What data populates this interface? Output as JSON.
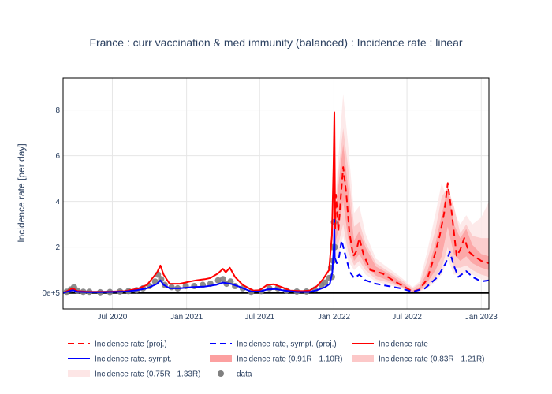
{
  "chart_data": {
    "type": "line",
    "title": "France : curr vaccination & med immunity (balanced) : Incidence rate : linear",
    "xlabel": "",
    "ylabel": "Incidence rate [per day]",
    "x_range": [
      "2020-03-01",
      "2023-01-20"
    ],
    "ylim": [
      -0.7,
      9.4
    ],
    "x_ticks": [
      {
        "date": "2020-07-01",
        "label": "Jul 2020"
      },
      {
        "date": "2021-01-01",
        "label": "Jan 2021"
      },
      {
        "date": "2021-07-01",
        "label": "Jul 2021"
      },
      {
        "date": "2022-01-01",
        "label": "Jan 2022"
      },
      {
        "date": "2022-07-01",
        "label": "Jul 2022"
      },
      {
        "date": "2023-01-01",
        "label": "Jan 2023"
      }
    ],
    "y_ticks": [
      {
        "value": 0,
        "label": "0e+5"
      },
      {
        "value": 2,
        "label": "2"
      },
      {
        "value": 4,
        "label": "4"
      },
      {
        "value": 6,
        "label": "6"
      },
      {
        "value": 8,
        "label": "8"
      }
    ],
    "grid": true,
    "legend_position": "bottom",
    "colors": {
      "red": "#ff0000",
      "blue": "#0000ff",
      "band_inner": "#fca0a0",
      "band_mid": "#fcc8c8",
      "band_outer": "#fde6e6",
      "data_points": "#808080",
      "zero_line": "#000000"
    },
    "series": [
      {
        "name": "Incidence rate",
        "style": "solid",
        "color": "#ff0000",
        "points": [
          [
            "2020-03-01",
            0.0
          ],
          [
            "2020-03-25",
            0.2
          ],
          [
            "2020-04-05",
            0.08
          ],
          [
            "2020-05-01",
            0.05
          ],
          [
            "2020-06-01",
            0.05
          ],
          [
            "2020-07-01",
            0.06
          ],
          [
            "2020-08-01",
            0.08
          ],
          [
            "2020-09-01",
            0.18
          ],
          [
            "2020-09-25",
            0.35
          ],
          [
            "2020-10-20",
            0.9
          ],
          [
            "2020-10-28",
            1.2
          ],
          [
            "2020-11-05",
            0.8
          ],
          [
            "2020-11-20",
            0.4
          ],
          [
            "2020-12-15",
            0.4
          ],
          [
            "2021-01-10",
            0.5
          ],
          [
            "2021-01-25",
            0.55
          ],
          [
            "2021-02-15",
            0.6
          ],
          [
            "2021-03-01",
            0.65
          ],
          [
            "2021-03-20",
            0.85
          ],
          [
            "2021-04-01",
            1.05
          ],
          [
            "2021-04-08",
            0.9
          ],
          [
            "2021-04-18",
            1.1
          ],
          [
            "2021-05-01",
            0.7
          ],
          [
            "2021-05-20",
            0.35
          ],
          [
            "2021-06-15",
            0.1
          ],
          [
            "2021-07-01",
            0.12
          ],
          [
            "2021-07-20",
            0.35
          ],
          [
            "2021-08-05",
            0.38
          ],
          [
            "2021-08-25",
            0.25
          ],
          [
            "2021-09-15",
            0.1
          ],
          [
            "2021-10-15",
            0.08
          ],
          [
            "2021-11-01",
            0.1
          ],
          [
            "2021-11-20",
            0.3
          ],
          [
            "2021-12-05",
            0.6
          ],
          [
            "2021-12-20",
            1.0
          ],
          [
            "2021-12-27",
            2.5
          ],
          [
            "2021-12-31",
            5.5
          ],
          [
            "2022-01-02",
            7.9
          ],
          [
            "2022-01-04",
            2.8
          ]
        ]
      },
      {
        "name": "Incidence rate, sympt.",
        "style": "solid",
        "color": "#0000ff",
        "points": [
          [
            "2020-03-01",
            0.0
          ],
          [
            "2020-03-25",
            0.12
          ],
          [
            "2020-04-05",
            0.05
          ],
          [
            "2020-05-01",
            0.03
          ],
          [
            "2020-06-01",
            0.03
          ],
          [
            "2020-07-01",
            0.04
          ],
          [
            "2020-08-01",
            0.06
          ],
          [
            "2020-09-01",
            0.12
          ],
          [
            "2020-09-25",
            0.2
          ],
          [
            "2020-10-20",
            0.4
          ],
          [
            "2020-10-28",
            0.55
          ],
          [
            "2020-11-05",
            0.35
          ],
          [
            "2020-11-20",
            0.2
          ],
          [
            "2020-12-15",
            0.2
          ],
          [
            "2021-01-15",
            0.25
          ],
          [
            "2021-02-15",
            0.28
          ],
          [
            "2021-03-15",
            0.35
          ],
          [
            "2021-04-01",
            0.45
          ],
          [
            "2021-04-20",
            0.4
          ],
          [
            "2021-05-10",
            0.28
          ],
          [
            "2021-06-10",
            0.06
          ],
          [
            "2021-07-01",
            0.06
          ],
          [
            "2021-07-20",
            0.15
          ],
          [
            "2021-08-10",
            0.17
          ],
          [
            "2021-09-01",
            0.1
          ],
          [
            "2021-10-01",
            0.04
          ],
          [
            "2021-11-01",
            0.04
          ],
          [
            "2021-11-20",
            0.12
          ],
          [
            "2021-12-10",
            0.25
          ],
          [
            "2021-12-22",
            0.4
          ],
          [
            "2021-12-28",
            0.9
          ],
          [
            "2022-01-01",
            2.2
          ],
          [
            "2022-01-02",
            3.2
          ],
          [
            "2022-01-03",
            1.5
          ]
        ]
      },
      {
        "name": "Incidence rate (proj.)",
        "style": "dash",
        "color": "#ff0000",
        "points": [
          [
            "2022-01-04",
            2.8
          ],
          [
            "2022-01-06",
            4.3
          ],
          [
            "2022-01-09",
            3.6
          ],
          [
            "2022-01-12",
            2.7
          ],
          [
            "2022-01-18",
            4.2
          ],
          [
            "2022-01-24",
            5.5
          ],
          [
            "2022-02-01",
            4.3
          ],
          [
            "2022-02-08",
            2.7
          ],
          [
            "2022-02-18",
            1.6
          ],
          [
            "2022-02-25",
            1.8
          ],
          [
            "2022-03-05",
            2.4
          ],
          [
            "2022-03-15",
            1.7
          ],
          [
            "2022-04-01",
            1.0
          ],
          [
            "2022-05-01",
            0.85
          ],
          [
            "2022-06-01",
            0.5
          ],
          [
            "2022-07-01",
            0.2
          ],
          [
            "2022-07-15",
            0.05
          ],
          [
            "2022-08-01",
            0.15
          ],
          [
            "2022-08-20",
            0.6
          ],
          [
            "2022-09-05",
            1.5
          ],
          [
            "2022-09-20",
            2.5
          ],
          [
            "2022-10-01",
            3.5
          ],
          [
            "2022-10-10",
            4.8
          ],
          [
            "2022-10-20",
            3.5
          ],
          [
            "2022-11-01",
            1.6
          ],
          [
            "2022-11-10",
            1.9
          ],
          [
            "2022-11-20",
            2.4
          ],
          [
            "2022-12-01",
            1.8
          ],
          [
            "2022-12-15",
            1.6
          ],
          [
            "2023-01-01",
            1.4
          ],
          [
            "2023-01-20",
            1.3
          ]
        ]
      },
      {
        "name": "Incidence rate, sympt. (proj.)",
        "style": "dash",
        "color": "#0000ff",
        "points": [
          [
            "2022-01-04",
            1.5
          ],
          [
            "2022-01-08",
            1.3
          ],
          [
            "2022-01-14",
            1.6
          ],
          [
            "2022-01-20",
            2.3
          ],
          [
            "2022-01-30",
            1.6
          ],
          [
            "2022-02-10",
            0.9
          ],
          [
            "2022-02-20",
            0.65
          ],
          [
            "2022-03-05",
            0.8
          ],
          [
            "2022-03-20",
            0.55
          ],
          [
            "2022-04-15",
            0.4
          ],
          [
            "2022-05-15",
            0.3
          ],
          [
            "2022-06-15",
            0.2
          ],
          [
            "2022-07-15",
            0.05
          ],
          [
            "2022-08-15",
            0.2
          ],
          [
            "2022-09-15",
            0.7
          ],
          [
            "2022-10-05",
            1.3
          ],
          [
            "2022-10-15",
            1.8
          ],
          [
            "2022-10-25",
            1.2
          ],
          [
            "2022-11-05",
            0.7
          ],
          [
            "2022-11-25",
            0.95
          ],
          [
            "2022-12-10",
            0.7
          ],
          [
            "2023-01-01",
            0.5
          ],
          [
            "2023-01-20",
            0.55
          ]
        ]
      }
    ],
    "bands": [
      {
        "name": "Incidence rate (0.75R - 1.33R)",
        "color": "#fde6e6",
        "points": [
          [
            "2022-01-04",
            1.5,
            4.0
          ],
          [
            "2022-01-10",
            1.5,
            5.5
          ],
          [
            "2022-01-24",
            2.5,
            8.7
          ],
          [
            "2022-02-05",
            1.4,
            6.5
          ],
          [
            "2022-02-20",
            1.0,
            3.5
          ],
          [
            "2022-03-05",
            1.2,
            3.8
          ],
          [
            "2022-03-20",
            0.8,
            2.6
          ],
          [
            "2022-04-15",
            0.5,
            1.5
          ],
          [
            "2022-05-15",
            0.35,
            1.1
          ],
          [
            "2022-06-15",
            0.2,
            0.7
          ],
          [
            "2022-07-15",
            0.03,
            0.25
          ],
          [
            "2022-08-01",
            0.05,
            0.5
          ],
          [
            "2022-08-20",
            0.2,
            1.8
          ],
          [
            "2022-09-10",
            0.5,
            3.5
          ],
          [
            "2022-09-25",
            0.8,
            4.8
          ],
          [
            "2022-10-10",
            1.5,
            4.0
          ],
          [
            "2022-10-25",
            0.8,
            3.5
          ],
          [
            "2022-11-10",
            0.8,
            3.0
          ],
          [
            "2022-11-25",
            0.9,
            3.4
          ],
          [
            "2022-12-10",
            0.8,
            3.0
          ],
          [
            "2023-01-01",
            0.6,
            3.3
          ],
          [
            "2023-01-20",
            0.5,
            4.0
          ]
        ]
      },
      {
        "name": "Incidence rate (0.83R - 1.21R)",
        "color": "#fcc8c8",
        "points": [
          [
            "2022-01-04",
            1.8,
            3.7
          ],
          [
            "2022-01-10",
            2.0,
            5.0
          ],
          [
            "2022-01-24",
            3.0,
            7.2
          ],
          [
            "2022-02-05",
            1.8,
            5.5
          ],
          [
            "2022-02-20",
            1.2,
            2.9
          ],
          [
            "2022-03-05",
            1.4,
            3.1
          ],
          [
            "2022-03-20",
            1.0,
            2.2
          ],
          [
            "2022-04-15",
            0.6,
            1.3
          ],
          [
            "2022-05-15",
            0.45,
            0.95
          ],
          [
            "2022-06-15",
            0.25,
            0.6
          ],
          [
            "2022-07-15",
            0.04,
            0.2
          ],
          [
            "2022-08-01",
            0.08,
            0.4
          ],
          [
            "2022-08-20",
            0.3,
            1.4
          ],
          [
            "2022-09-10",
            0.7,
            2.8
          ],
          [
            "2022-09-25",
            1.1,
            4.2
          ],
          [
            "2022-10-10",
            2.0,
            4.6
          ],
          [
            "2022-10-25",
            1.1,
            3.8
          ],
          [
            "2022-11-10",
            1.1,
            2.6
          ],
          [
            "2022-11-25",
            1.2,
            3.0
          ],
          [
            "2022-12-10",
            1.0,
            2.5
          ],
          [
            "2023-01-01",
            0.8,
            2.4
          ],
          [
            "2023-01-20",
            0.7,
            2.4
          ]
        ]
      },
      {
        "name": "Incidence rate (0.91R - 1.10R)",
        "color": "#fca0a0",
        "points": [
          [
            "2022-01-04",
            2.2,
            3.4
          ],
          [
            "2022-01-10",
            2.6,
            4.4
          ],
          [
            "2022-01-24",
            4.0,
            6.5
          ],
          [
            "2022-02-05",
            2.4,
            4.6
          ],
          [
            "2022-02-20",
            1.4,
            2.3
          ],
          [
            "2022-03-05",
            1.7,
            2.7
          ],
          [
            "2022-03-20",
            1.2,
            2.0
          ],
          [
            "2022-04-15",
            0.75,
            1.15
          ],
          [
            "2022-05-15",
            0.55,
            0.85
          ],
          [
            "2022-06-15",
            0.3,
            0.5
          ],
          [
            "2022-07-15",
            0.04,
            0.1
          ],
          [
            "2022-08-01",
            0.1,
            0.25
          ],
          [
            "2022-08-20",
            0.45,
            0.9
          ],
          [
            "2022-09-10",
            1.0,
            2.2
          ],
          [
            "2022-09-25",
            1.6,
            3.4
          ],
          [
            "2022-10-10",
            2.9,
            4.7
          ],
          [
            "2022-10-25",
            1.7,
            3.0
          ],
          [
            "2022-11-10",
            1.4,
            2.4
          ],
          [
            "2022-11-25",
            1.6,
            2.8
          ],
          [
            "2022-12-10",
            1.3,
            2.1
          ],
          [
            "2023-01-01",
            1.1,
            1.7
          ],
          [
            "2023-01-20",
            1.0,
            1.6
          ]
        ]
      }
    ],
    "data_points_series": {
      "name": "data",
      "points": [
        [
          "2020-03-10",
          0.05
        ],
        [
          "2020-03-20",
          0.15
        ],
        [
          "2020-03-28",
          0.25
        ],
        [
          "2020-04-05",
          0.1
        ],
        [
          "2020-04-20",
          0.05
        ],
        [
          "2020-05-05",
          0.05
        ],
        [
          "2020-06-01",
          0.03
        ],
        [
          "2020-06-25",
          0.04
        ],
        [
          "2020-07-20",
          0.06
        ],
        [
          "2020-08-10",
          0.08
        ],
        [
          "2020-08-30",
          0.12
        ],
        [
          "2020-09-15",
          0.2
        ],
        [
          "2020-10-01",
          0.3
        ],
        [
          "2020-10-15",
          0.5
        ],
        [
          "2020-10-22",
          0.8
        ],
        [
          "2020-10-30",
          0.6
        ],
        [
          "2020-11-08",
          0.35
        ],
        [
          "2020-11-25",
          0.25
        ],
        [
          "2020-12-10",
          0.2
        ],
        [
          "2020-12-30",
          0.3
        ],
        [
          "2021-01-20",
          0.3
        ],
        [
          "2021-02-10",
          0.35
        ],
        [
          "2021-03-01",
          0.4
        ],
        [
          "2021-03-20",
          0.55
        ],
        [
          "2021-04-01",
          0.6
        ],
        [
          "2021-04-10",
          0.4
        ],
        [
          "2021-04-20",
          0.5
        ],
        [
          "2021-05-01",
          0.3
        ],
        [
          "2021-05-20",
          0.2
        ],
        [
          "2021-06-10",
          0.05
        ],
        [
          "2021-07-05",
          0.08
        ],
        [
          "2021-07-25",
          0.2
        ],
        [
          "2021-08-15",
          0.2
        ],
        [
          "2021-09-05",
          0.1
        ],
        [
          "2021-10-01",
          0.06
        ],
        [
          "2021-10-25",
          0.06
        ],
        [
          "2021-11-15",
          0.15
        ],
        [
          "2021-12-01",
          0.35
        ],
        [
          "2021-12-10",
          0.45
        ],
        [
          "2021-12-20",
          0.65
        ],
        [
          "2021-12-25",
          1.1
        ],
        [
          "2021-12-29",
          2.0
        ],
        [
          "2022-01-01",
          3.1
        ],
        [
          "2022-01-03",
          2.0
        ],
        [
          "2021-12-30",
          1.4
        ],
        [
          "2021-12-27",
          0.7
        ]
      ]
    }
  }
}
